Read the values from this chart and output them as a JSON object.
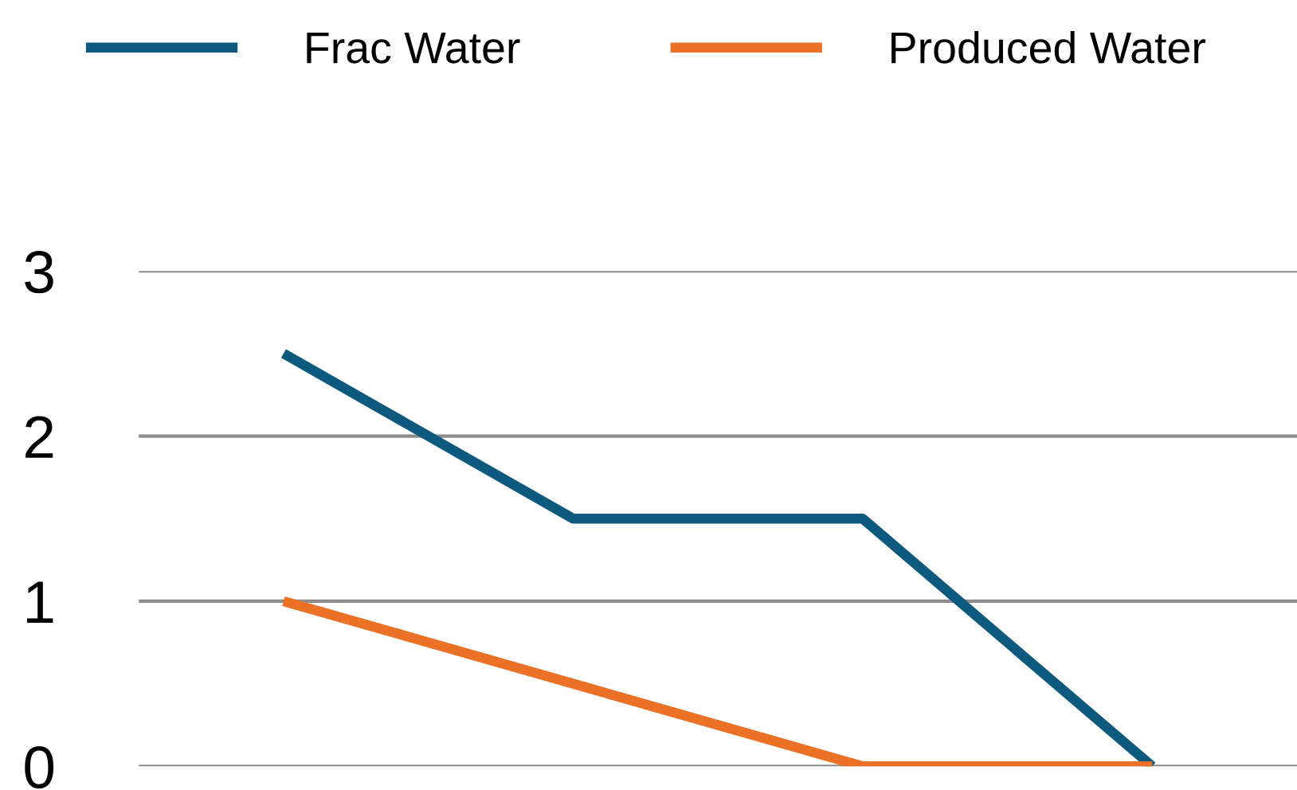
{
  "chart_data": {
    "type": "line",
    "categories": [
      null,
      null,
      null,
      null
    ],
    "series": [
      {
        "name": "Frac Water",
        "color": "#0e5a7e",
        "values": [
          2.5,
          1.5,
          1.5,
          0
        ]
      },
      {
        "name": "Produced Water",
        "color": "#ea7125",
        "values": [
          1,
          0.5,
          0,
          0
        ]
      }
    ],
    "ylim": [
      0,
      3
    ],
    "yticks": [
      0,
      1,
      2,
      3
    ],
    "grid": "y",
    "legend": "top",
    "tick_labels": "y",
    "marker": "none",
    "line_style": "solid"
  }
}
